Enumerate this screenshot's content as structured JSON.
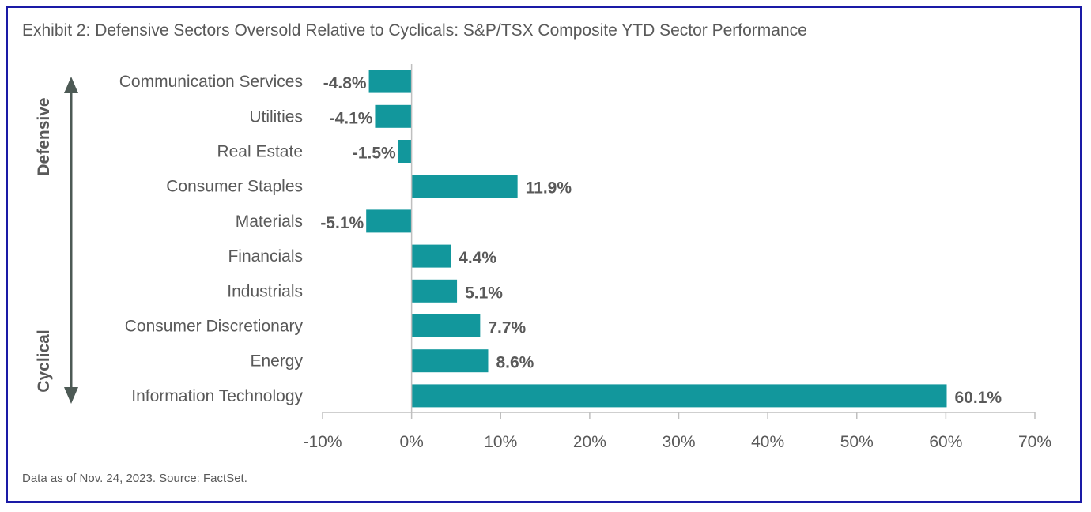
{
  "title": "Exhibit 2: Defensive Sectors Oversold Relative to Cyclicals: S&P/TSX Composite YTD Sector Performance",
  "footnote": "Data as of Nov. 24, 2023. Source: FactSet.",
  "colors": {
    "bar": "#12979c",
    "text": "#595959",
    "border": "#1a1aa6",
    "arrow": "#4d5a55",
    "axis": "#bfbfbf"
  },
  "chart_data": {
    "type": "bar",
    "orientation": "horizontal",
    "categories": [
      "Communication Services",
      "Utilities",
      "Real Estate",
      "Consumer Staples",
      "Materials",
      "Financials",
      "Industrials",
      "Consumer Discretionary",
      "Energy",
      "Information Technology"
    ],
    "values": [
      -4.8,
      -4.1,
      -1.5,
      11.9,
      -5.1,
      4.4,
      5.1,
      7.7,
      8.6,
      60.1
    ],
    "value_labels": [
      "-4.8%",
      "-4.1%",
      "-1.5%",
      "11.9%",
      "-5.1%",
      "4.4%",
      "5.1%",
      "7.7%",
      "8.6%",
      "60.1%"
    ],
    "x_ticks": [
      -10,
      0,
      10,
      20,
      30,
      40,
      50,
      60,
      70
    ],
    "x_tick_labels": [
      "-10%",
      "0%",
      "10%",
      "20%",
      "30%",
      "40%",
      "50%",
      "60%",
      "70%"
    ],
    "xlim": [
      -10,
      70
    ],
    "grid": false,
    "group_labels": {
      "top": "Defensive",
      "bottom": "Cyclical"
    }
  }
}
